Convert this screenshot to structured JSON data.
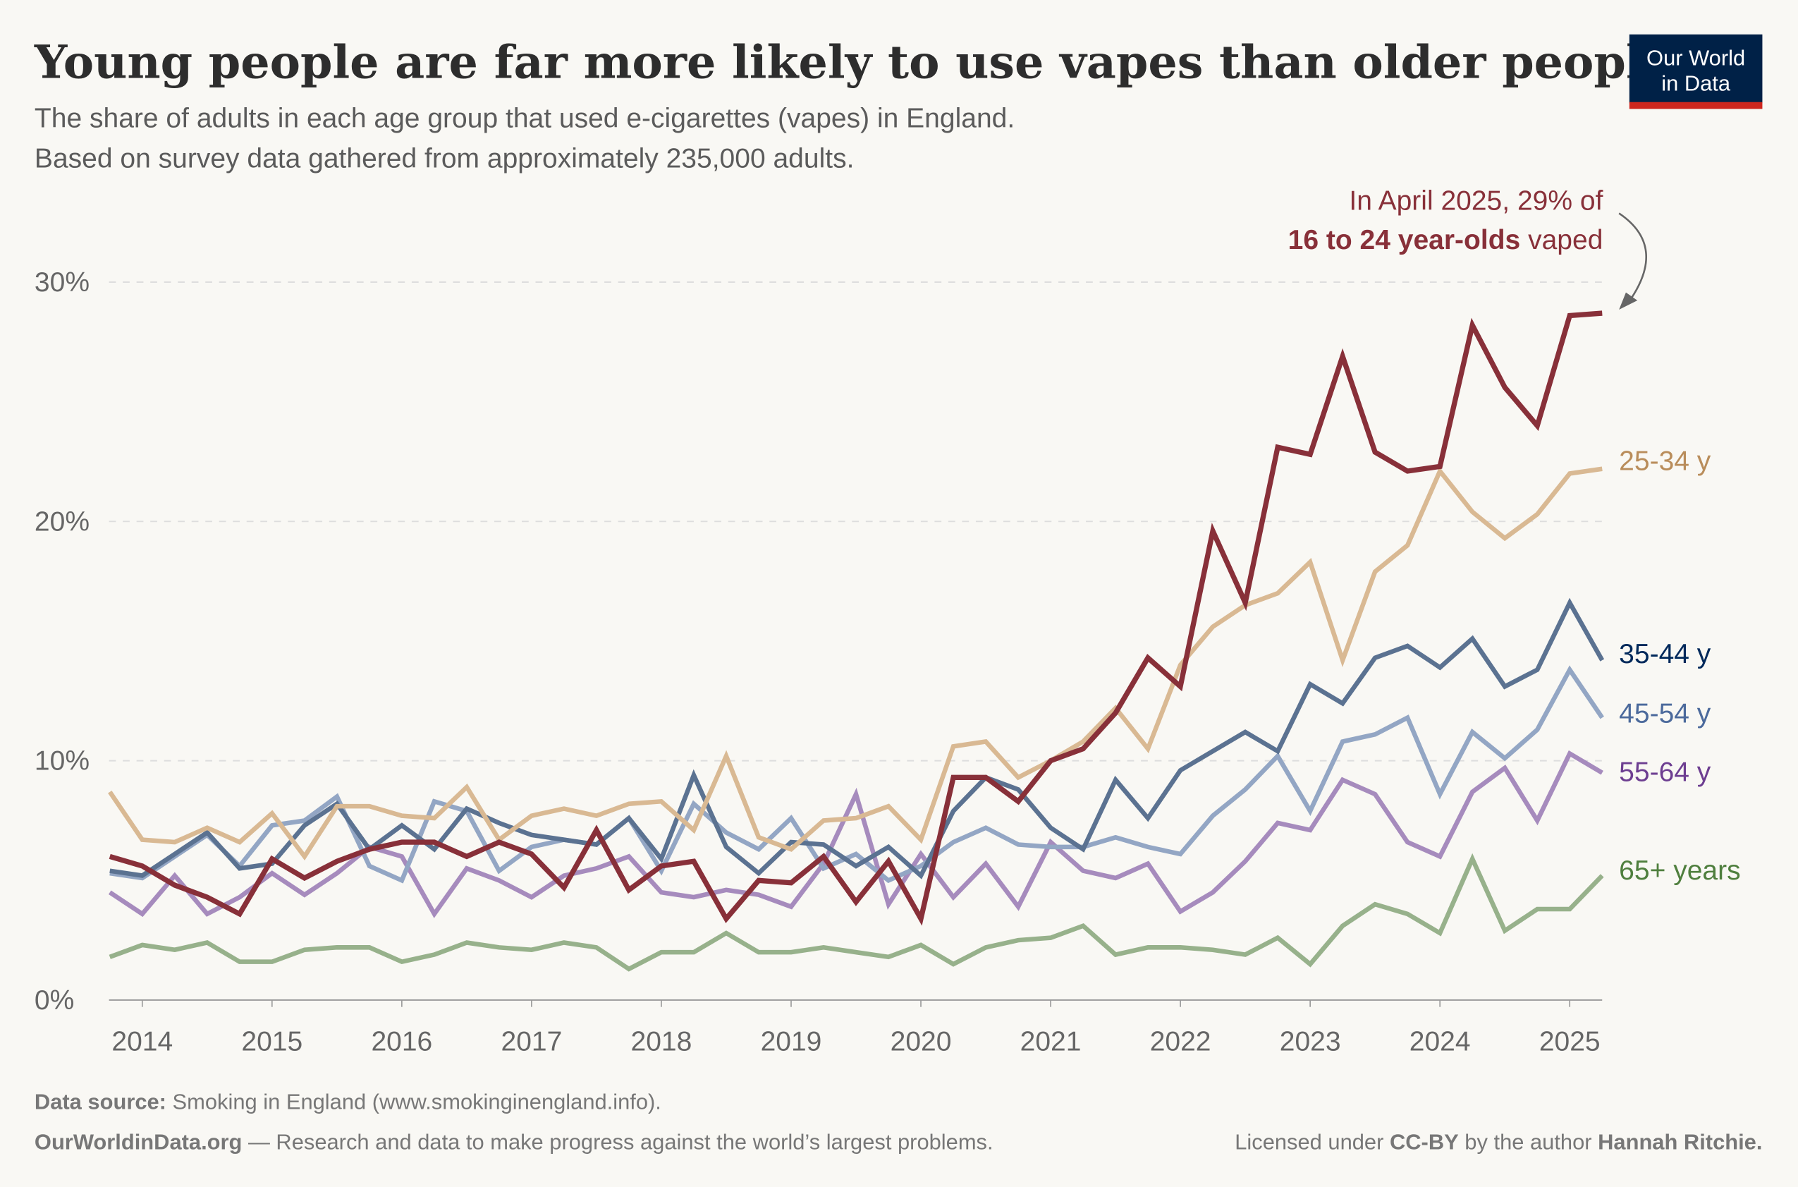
{
  "title": "Young people are far more likely to use vapes than older people",
  "subtitle_line1": "The share of adults in each age group that used e-cigarettes (vapes) in England.",
  "subtitle_line2": "Based on survey data gathered from approximately 235,000 adults.",
  "logo": {
    "line1": "Our World",
    "line2": "in Data"
  },
  "annotation": {
    "line1": "In April 2025, 29% of",
    "line2_bold": "16 to 24 year-olds",
    "line2_rest": " vaped"
  },
  "footer": {
    "source_label": "Data source:",
    "source_text": " Smoking in England (www.smokinginengland.info).",
    "owid_bold": "OurWorldinData.org",
    "owid_text": " — Research and data to make progress against the world’s largest problems.",
    "license_pre": "Licensed under ",
    "license_bold": "CC-BY",
    "license_mid": " by the author ",
    "author": "Hannah Ritchie."
  },
  "chart_data": {
    "type": "line",
    "title": "Young people are far more likely to use vapes than older people",
    "xlabel": "",
    "ylabel": "",
    "x_ticks": [
      "2014",
      "2015",
      "2016",
      "2017",
      "2018",
      "2019",
      "2020",
      "2021",
      "2022",
      "2023",
      "2024",
      "2025"
    ],
    "y_ticks": [
      "0%",
      "10%",
      "20%",
      "30%"
    ],
    "ylim": [
      0,
      30
    ],
    "grid": "horizontal dashed",
    "legend": "inline labels at right end",
    "x": [
      "2013-10",
      "2014-01",
      "2014-04",
      "2014-07",
      "2014-10",
      "2015-01",
      "2015-04",
      "2015-07",
      "2015-10",
      "2016-01",
      "2016-04",
      "2016-07",
      "2016-10",
      "2017-01",
      "2017-04",
      "2017-07",
      "2017-10",
      "2018-01",
      "2018-04",
      "2018-07",
      "2018-10",
      "2019-01",
      "2019-04",
      "2019-07",
      "2019-10",
      "2020-01",
      "2020-04",
      "2020-07",
      "2020-10",
      "2021-01",
      "2021-04",
      "2021-07",
      "2021-10",
      "2022-01",
      "2022-04",
      "2022-07",
      "2022-10",
      "2023-01",
      "2023-04",
      "2023-07",
      "2023-10",
      "2024-01",
      "2024-04",
      "2024-07",
      "2024-10",
      "2025-01",
      "2025-04"
    ],
    "series": [
      {
        "name": "65+ years",
        "color": "#97b18b",
        "label_color": "#4f7f3e",
        "values": [
          1.8,
          2.3,
          2.1,
          2.4,
          1.6,
          1.6,
          2.1,
          2.2,
          2.2,
          1.6,
          1.9,
          2.4,
          2.2,
          2.1,
          2.4,
          2.2,
          1.3,
          2.0,
          2.0,
          2.8,
          2.0,
          2.0,
          2.2,
          2.0,
          1.8,
          2.3,
          1.5,
          2.2,
          2.5,
          2.6,
          3.1,
          1.9,
          2.2,
          2.2,
          2.1,
          1.9,
          2.6,
          1.5,
          3.1,
          4.0,
          3.6,
          2.8,
          5.9,
          2.9,
          3.8,
          3.8,
          5.2
        ]
      },
      {
        "name": "55-64 y",
        "color": "#a68bbd",
        "label_color": "#6d3e91",
        "values": [
          4.5,
          3.6,
          5.2,
          3.6,
          4.3,
          5.3,
          4.4,
          5.3,
          6.4,
          6.0,
          3.6,
          5.5,
          5.0,
          4.3,
          5.2,
          5.5,
          6.0,
          4.5,
          4.3,
          4.6,
          4.4,
          3.9,
          5.7,
          8.6,
          4.0,
          6.1,
          4.3,
          5.7,
          3.9,
          6.6,
          5.4,
          5.1,
          5.7,
          3.7,
          4.5,
          5.8,
          7.4,
          7.1,
          9.2,
          8.6,
          6.6,
          6.0,
          8.7,
          9.7,
          7.5,
          10.3,
          9.5
        ]
      },
      {
        "name": "45-54 y",
        "color": "#93a6c4",
        "label_color": "#4c6a9c",
        "values": [
          5.3,
          5.1,
          6.0,
          6.9,
          5.6,
          7.3,
          7.5,
          8.5,
          5.6,
          5.0,
          8.3,
          7.9,
          5.4,
          6.4,
          6.7,
          6.5,
          7.6,
          5.4,
          8.2,
          7.0,
          6.3,
          7.6,
          5.5,
          6.1,
          5.0,
          5.6,
          6.6,
          7.2,
          6.5,
          6.4,
          6.4,
          6.8,
          6.4,
          6.1,
          7.7,
          8.8,
          10.2,
          7.9,
          10.8,
          11.1,
          11.8,
          8.6,
          11.2,
          10.1,
          11.3,
          13.8,
          11.8
        ]
      },
      {
        "name": "35-44 y",
        "color": "#5b7291",
        "label_color": "#00295b",
        "values": [
          5.4,
          5.2,
          6.1,
          7.0,
          5.5,
          5.7,
          7.3,
          8.2,
          6.3,
          7.3,
          6.3,
          8.0,
          7.4,
          6.9,
          6.7,
          6.5,
          7.6,
          5.9,
          9.4,
          6.4,
          5.3,
          6.6,
          6.5,
          5.6,
          6.4,
          5.2,
          7.9,
          9.3,
          8.8,
          7.2,
          6.3,
          9.2,
          7.6,
          9.6,
          10.4,
          11.2,
          10.4,
          13.2,
          12.4,
          14.3,
          14.8,
          13.9,
          15.1,
          13.1,
          13.8,
          16.6,
          14.2
        ]
      },
      {
        "name": "25-34 y",
        "color": "#d9b993",
        "label_color": "#b98d5b",
        "values": [
          8.7,
          6.7,
          6.6,
          7.2,
          6.6,
          7.8,
          6.0,
          8.1,
          8.1,
          7.7,
          7.6,
          8.9,
          6.7,
          7.7,
          8.0,
          7.7,
          8.2,
          8.3,
          7.1,
          10.2,
          6.8,
          6.3,
          7.5,
          7.6,
          8.1,
          6.7,
          10.6,
          10.8,
          9.3,
          10.0,
          10.8,
          12.2,
          10.5,
          14.0,
          15.6,
          16.5,
          17.0,
          18.3,
          14.2,
          17.9,
          19.0,
          22.1,
          20.4,
          19.3,
          20.3,
          22.0,
          22.2
        ]
      },
      {
        "name": "16 to 24 year-olds",
        "color": "#883039",
        "label_color": "#883039",
        "values": [
          6.0,
          5.6,
          4.8,
          4.3,
          3.6,
          5.9,
          5.1,
          5.8,
          6.3,
          6.6,
          6.6,
          6.0,
          6.6,
          6.1,
          4.7,
          7.1,
          4.6,
          5.6,
          5.8,
          3.4,
          5.0,
          4.9,
          6.0,
          4.1,
          5.8,
          3.4,
          9.3,
          9.3,
          8.3,
          10.0,
          10.5,
          12.0,
          14.3,
          13.1,
          19.6,
          16.6,
          23.1,
          22.8,
          26.9,
          22.9,
          22.1,
          22.3,
          28.2,
          25.6,
          24.0,
          28.6,
          28.7
        ]
      }
    ]
  }
}
